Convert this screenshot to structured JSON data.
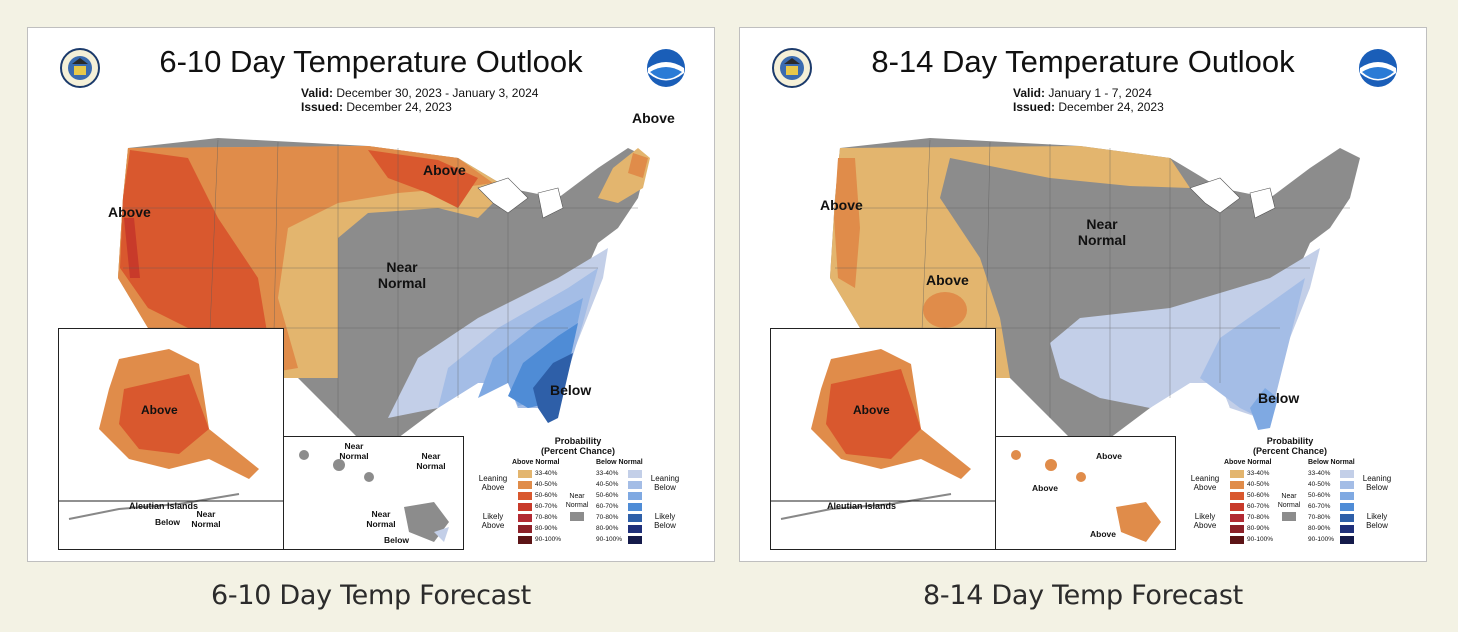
{
  "colors": {
    "page_bg": "#f3f2e4",
    "above_33_40": "#e3b56e",
    "above_40_50": "#e08c4a",
    "above_50_60": "#d9582e",
    "above_60_70": "#c83a2a",
    "above_70_80": "#b22a33",
    "above_80_90": "#8c2028",
    "above_90_100": "#5c1416",
    "below_33_40": "#c3cfe8",
    "below_40_50": "#a4bde6",
    "below_50_60": "#7fa9e2",
    "below_60_70": "#4f8cd6",
    "below_70_80": "#2e5fa8",
    "below_80_90": "#1e2f7a",
    "below_90_100": "#141a4a",
    "near_normal": "#8c8c8c"
  },
  "legend": {
    "title_line1": "Probability",
    "title_line2": "(Percent Chance)",
    "above_head": "Above Normal",
    "below_head": "Below Normal",
    "leaning_above": "Leaning Above",
    "likely_above": "Likely Above",
    "leaning_below": "Leaning Below",
    "likely_below": "Likely Below",
    "near_normal": "Near Normal",
    "ranges": [
      "33-40%",
      "40-50%",
      "50-60%",
      "60-70%",
      "70-80%",
      "80-90%",
      "90-100%"
    ]
  },
  "panels": [
    {
      "title": "6-10 Day Temperature Outlook",
      "valid_label": "Valid:",
      "valid_value": "December 30, 2023 - January 3, 2024",
      "issued_label": "Issued:",
      "issued_value": "December 24, 2023",
      "caption": "6-10 Day Temp Forecast",
      "labels": {
        "west": "Above",
        "north": "Above",
        "northeast": "Above",
        "center": "Near Normal",
        "southeast": "Below",
        "alaska": "Above",
        "aleutian_title": "Aleutian Islands",
        "aleutian_near": "Near Normal",
        "aleutian_below": "Below",
        "hawaii_1": "Near Normal",
        "hawaii_2": "Near Normal",
        "hawaii_3": "Near Normal",
        "hawaii_4": "Below"
      }
    },
    {
      "title": "8-14 Day Temperature Outlook",
      "valid_label": "Valid:",
      "valid_value": "January 1 - 7, 2024",
      "issued_label": "Issued:",
      "issued_value": "December 24, 2023",
      "caption": "8-14 Day Temp Forecast",
      "labels": {
        "west": "Above",
        "southwest": "Above",
        "center": "Near Normal",
        "southeast": "Below",
        "alaska": "Above",
        "aleutian_title": "Aleutian Islands",
        "hawaii_1": "Above",
        "hawaii_2": "Above",
        "hawaii_3": "Above"
      }
    }
  ]
}
